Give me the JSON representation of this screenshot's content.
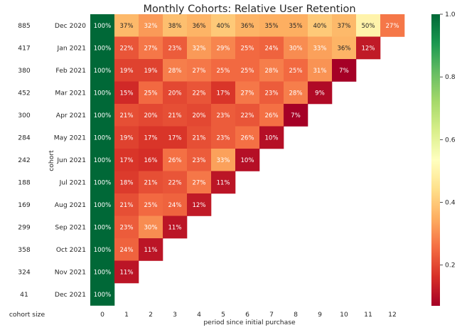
{
  "chart_data": {
    "type": "heatmap",
    "title": "Monthly Cohorts: Relative User Retention",
    "xlabel": "period since initial purchase",
    "ylabel": "cohort",
    "size_header": "cohort size",
    "x_ticks": [
      "0",
      "1",
      "2",
      "3",
      "4",
      "5",
      "6",
      "7",
      "8",
      "9",
      "10",
      "11",
      "12"
    ],
    "cohorts": [
      "Dec 2020",
      "Jan 2021",
      "Feb 2021",
      "Mar 2021",
      "Apr 2021",
      "May 2021",
      "Jun 2021",
      "Jul 2021",
      "Aug 2021",
      "Sep 2021",
      "Oct 2021",
      "Nov 2021",
      "Dec 2021"
    ],
    "cohort_sizes": [
      "885",
      "417",
      "380",
      "452",
      "300",
      "284",
      "242",
      "188",
      "169",
      "299",
      "358",
      "324",
      "41"
    ],
    "values": [
      [
        100,
        37,
        32,
        38,
        36,
        40,
        36,
        35,
        35,
        40,
        37,
        50,
        27
      ],
      [
        100,
        22,
        27,
        23,
        32,
        29,
        25,
        24,
        30,
        33,
        36,
        12
      ],
      [
        100,
        19,
        19,
        28,
        27,
        25,
        25,
        28,
        25,
        31,
        7
      ],
      [
        100,
        15,
        25,
        20,
        22,
        17,
        27,
        23,
        28,
        9
      ],
      [
        100,
        21,
        20,
        21,
        20,
        23,
        22,
        26,
        7
      ],
      [
        100,
        19,
        17,
        17,
        21,
        23,
        26,
        10
      ],
      [
        100,
        17,
        16,
        26,
        23,
        33,
        10
      ],
      [
        100,
        18,
        21,
        22,
        27,
        11
      ],
      [
        100,
        21,
        25,
        24,
        12
      ],
      [
        100,
        23,
        30,
        11
      ],
      [
        100,
        24,
        11
      ],
      [
        100,
        11
      ],
      [
        100
      ]
    ],
    "colormap": "RdYlGn",
    "value_suffix": "%",
    "colorbar": {
      "range": [
        0.07,
        1.0
      ],
      "ticks": [
        "0.2",
        "0.4",
        "0.6",
        "0.8",
        "1.0"
      ]
    }
  }
}
